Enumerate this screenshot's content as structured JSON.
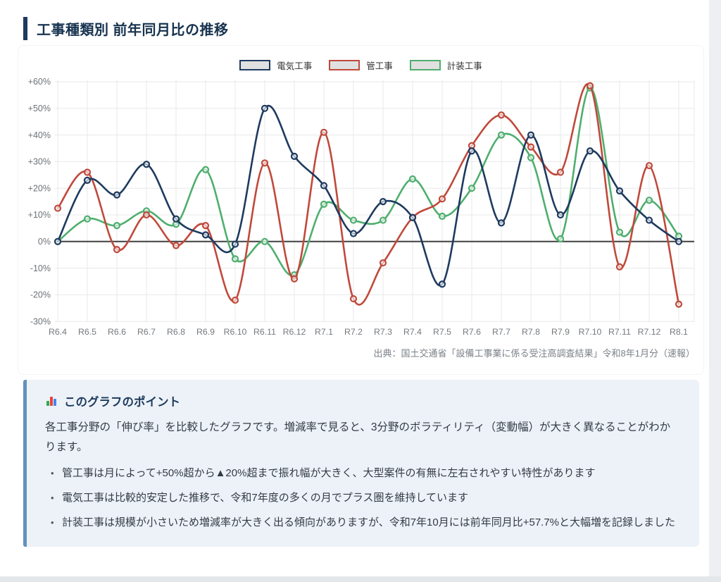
{
  "page": {
    "title": "工事種類別 前年同月比の推移",
    "source": "出典：国土交通省「設備工事業に係る受注高調査結果」令和8年1月分（速報）"
  },
  "chart_data": {
    "type": "line",
    "title": "工事種類別 前年同月比の推移",
    "categories": [
      "R6.4",
      "R6.5",
      "R6.6",
      "R6.7",
      "R6.8",
      "R6.9",
      "R6.10",
      "R6.11",
      "R6.12",
      "R7.1",
      "R7.2",
      "R7.3",
      "R7.4",
      "R7.5",
      "R7.6",
      "R7.7",
      "R7.8",
      "R7.9",
      "R7.10",
      "R7.11",
      "R7.12",
      "R8.1"
    ],
    "series": [
      {
        "name": "電気工事",
        "color": "#1e3a5f",
        "values": [
          0,
          23,
          17.5,
          29,
          8.5,
          2.5,
          -1,
          50,
          32,
          21,
          3,
          15,
          9,
          -16,
          34,
          7,
          40,
          10,
          34,
          19,
          8,
          0
        ]
      },
      {
        "name": "管工事",
        "color": "#c0493b",
        "values": [
          12.5,
          26,
          -3,
          10,
          -1.5,
          6,
          -22,
          29.5,
          -14,
          41,
          -21.5,
          -8,
          9,
          16,
          36,
          47.5,
          35.5,
          26,
          58.5,
          -9.5,
          28.5,
          -23.5
        ]
      },
      {
        "name": "計装工事",
        "color": "#4fae6e",
        "values": [
          0,
          8.5,
          6,
          11.5,
          6.5,
          27,
          -6.5,
          0,
          -12.5,
          14,
          8,
          8,
          23.5,
          9.5,
          20,
          40,
          31.5,
          1,
          57.7,
          3.5,
          15.5,
          2
        ]
      }
    ],
    "ylim": [
      -30,
      60
    ],
    "ytick_step": 10,
    "yticks": [
      "+60%",
      "+50%",
      "+40%",
      "+30%",
      "+20%",
      "+10%",
      "0%",
      "-10%",
      "-20%",
      "-30%"
    ],
    "grid": true,
    "zero_line": true,
    "legend_position": "top"
  },
  "callout": {
    "icon": "bar-chart-icon",
    "title": "このグラフのポイント",
    "intro": "各工事分野の「伸び率」を比較したグラフです。増減率で見ると、3分野のボラティリティ（変動幅）が大きく異なることがわかります。",
    "bullets": [
      "管工事は月によって+50%超から▲20%超まで振れ幅が大きく、大型案件の有無に左右されやすい特性があります",
      "電気工事は比較的安定した推移で、令和7年度の多くの月でプラス圏を維持しています",
      "計装工事は規模が小さいため増減率が大きく出る傾向がありますが、令和7年10月には前年同月比+57.7%と大幅増を記録しました"
    ]
  },
  "colors": {
    "accent_navy": "#1e3a5f",
    "series_red": "#c0493b",
    "series_green": "#4fae6e",
    "legend_swatch_fill": "#e0e0e0",
    "grid": "#e7e8ea",
    "zero_line": "#404040",
    "callout_bg": "#edf2f8",
    "callout_border": "#6292ba"
  }
}
